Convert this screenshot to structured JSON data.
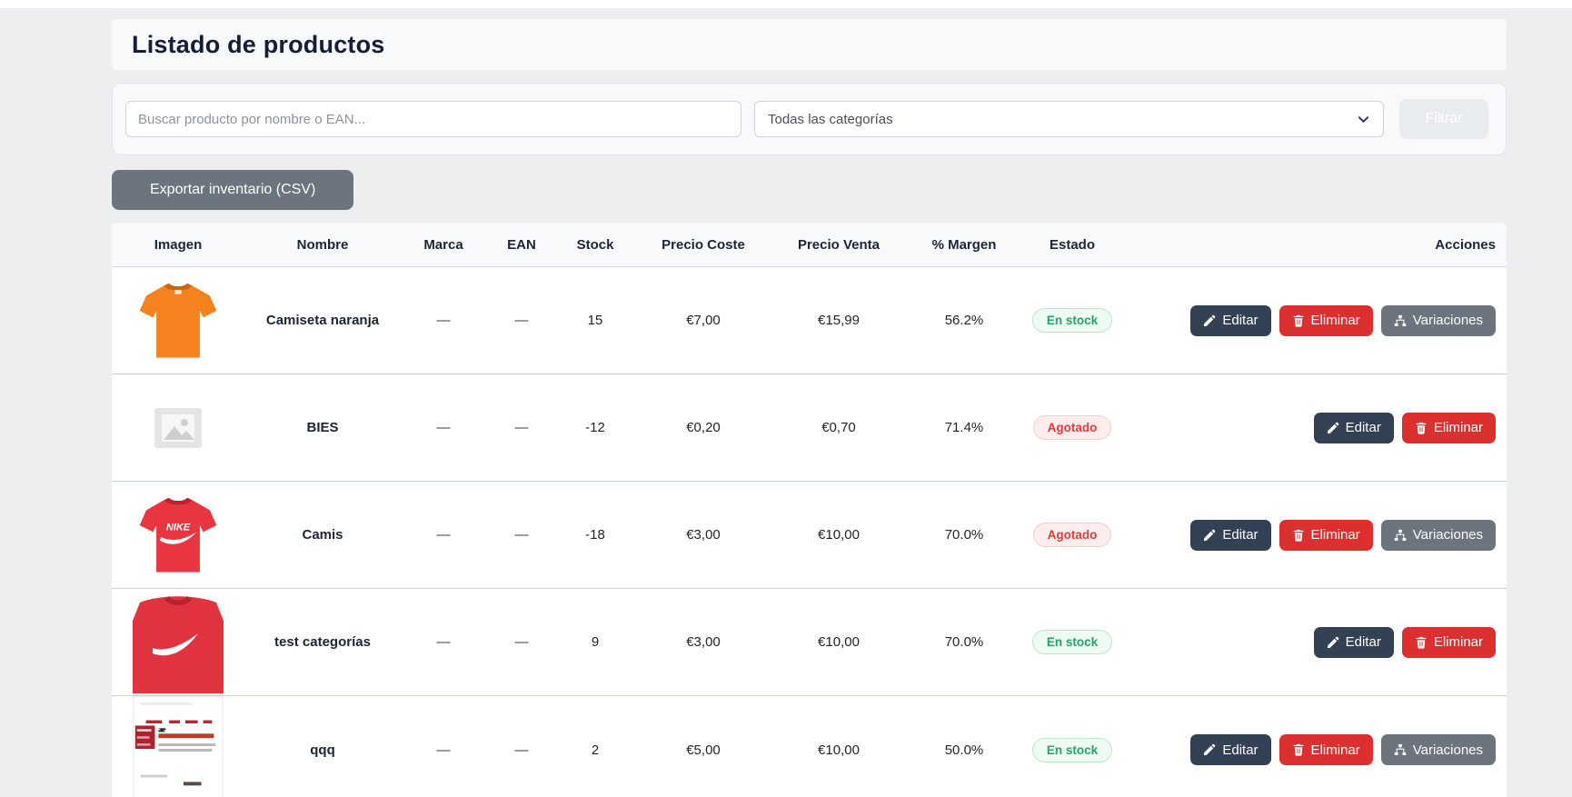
{
  "page": {
    "title": "Listado de productos"
  },
  "filters": {
    "search_placeholder": "Buscar producto por nombre o EAN...",
    "category_selected": "Todas las categorías",
    "filter_button": "Filtrar",
    "export_button": "Exportar inventario (CSV)"
  },
  "table": {
    "columns": [
      "Imagen",
      "Nombre",
      "Marca",
      "EAN",
      "Stock",
      "Precio Coste",
      "Precio Venta",
      "% Margen",
      "Estado",
      "Acciones"
    ],
    "action_defs": {
      "edit": {
        "label": "Editar",
        "icon": "pencil-icon"
      },
      "delete": {
        "label": "Eliminar",
        "icon": "trash-icon"
      },
      "variations": {
        "label": "Variaciones",
        "icon": "sitemap-icon"
      }
    },
    "rows": [
      {
        "image": "orange-tshirt",
        "name": "Camiseta naranja",
        "brand": "—",
        "ean": "—",
        "stock": "15",
        "cost": "€7,00",
        "price": "€15,99",
        "margin": "56.2%",
        "status": "En stock",
        "status_type": "in-stock",
        "actions": [
          "edit",
          "delete",
          "variations"
        ]
      },
      {
        "image": "placeholder-image",
        "name": "BIES",
        "brand": "—",
        "ean": "—",
        "stock": "-12",
        "cost": "€0,20",
        "price": "€0,70",
        "margin": "71.4%",
        "status": "Agotado",
        "status_type": "out-of-stock",
        "actions": [
          "edit",
          "delete"
        ]
      },
      {
        "image": "red-nike-tshirt",
        "name": "Camis",
        "brand": "—",
        "ean": "—",
        "stock": "-18",
        "cost": "€3,00",
        "price": "€10,00",
        "margin": "70.0%",
        "status": "Agotado",
        "status_type": "out-of-stock",
        "actions": [
          "edit",
          "delete",
          "variations"
        ]
      },
      {
        "image": "red-swoosh-tshirt",
        "name": "test categorías",
        "brand": "—",
        "ean": "—",
        "stock": "9",
        "cost": "€3,00",
        "price": "€10,00",
        "margin": "70.0%",
        "status": "En stock",
        "status_type": "in-stock",
        "actions": [
          "edit",
          "delete"
        ]
      },
      {
        "image": "webpage-screenshot",
        "name": "qqq",
        "brand": "—",
        "ean": "—",
        "stock": "2",
        "cost": "€5,00",
        "price": "€10,00",
        "margin": "50.0%",
        "status": "En stock",
        "status_type": "in-stock",
        "actions": [
          "edit",
          "delete",
          "variations"
        ]
      }
    ]
  },
  "colors": {
    "page-bg": "#eceef0",
    "panel-bg": "#f8f9fa",
    "title-color": "#161d36",
    "row-border": "#c3d2ec",
    "edit-btn": "#334155",
    "delete-btn": "#dc2f2f",
    "gray-btn": "#6c757d",
    "filter-btn-bg": "#e9ecef",
    "instock-fg": "#27a36a",
    "instock-bg": "#edfbf3",
    "agotado-fg": "#e23b3b",
    "agotado-bg": "#fdeded"
  }
}
